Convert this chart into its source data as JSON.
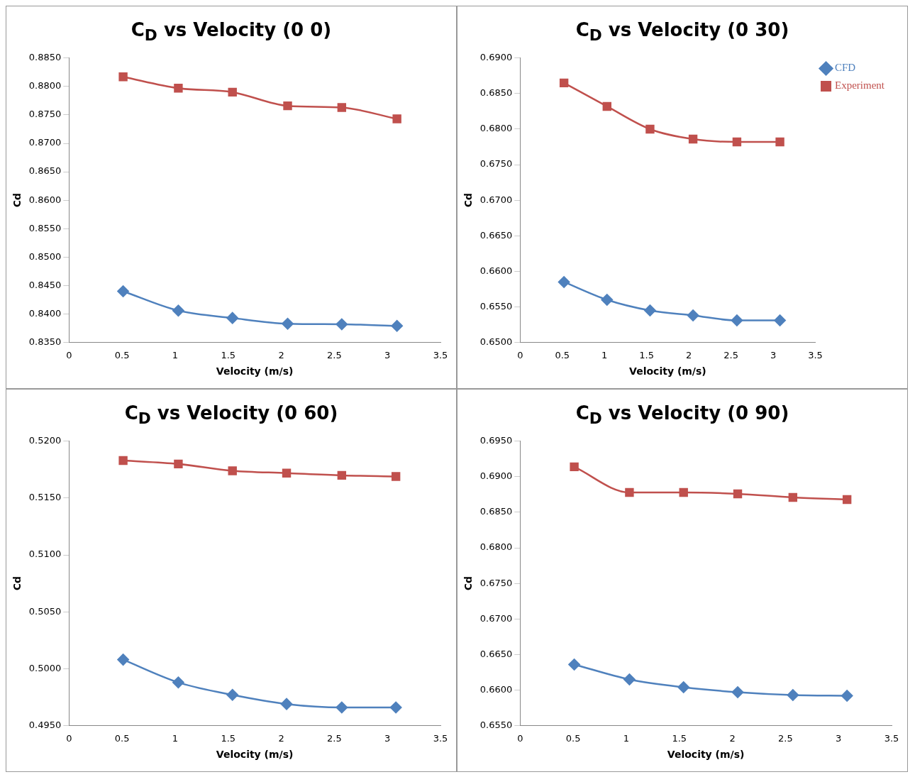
{
  "chart_data": [
    {
      "type": "line",
      "title": "C$_{D}$ vs Velocity (0 0)",
      "xlabel": "Velocity (m/s)",
      "ylabel": "Cd",
      "xlim": [
        0,
        3.5
      ],
      "xticks": [
        0,
        0.5,
        1,
        1.5,
        2,
        2.5,
        3,
        3.5
      ],
      "ylim": [
        0.835,
        0.885
      ],
      "yticks": [
        {
          "value": 0.835,
          "label": "0.8350"
        },
        {
          "value": 0.84,
          "label": "0.8400"
        },
        {
          "value": 0.845,
          "label": "0.8450"
        },
        {
          "value": 0.85,
          "label": "0.8500"
        },
        {
          "value": 0.855,
          "label": "0.8550"
        },
        {
          "value": 0.86,
          "label": "0.8600"
        },
        {
          "value": 0.865,
          "label": "0.8650"
        },
        {
          "value": 0.87,
          "label": "0.8700"
        },
        {
          "value": 0.875,
          "label": "0.8750"
        },
        {
          "value": 0.88,
          "label": "0.8800"
        },
        {
          "value": 0.885,
          "label": "0.8850"
        }
      ],
      "grid": false,
      "legend": false,
      "series": [
        {
          "color": "#4f81bd",
          "marker": "diamond",
          "x": [
            0.51,
            1.03,
            1.54,
            2.06,
            2.57,
            3.09
          ],
          "values": [
            0.844,
            0.8406,
            0.8393,
            0.8383,
            0.8382,
            0.8379
          ]
        },
        {
          "color": "#c0504d",
          "marker": "square",
          "x": [
            0.51,
            1.03,
            1.54,
            2.06,
            2.57,
            3.09
          ],
          "values": [
            0.8817,
            0.8797,
            0.879,
            0.8766,
            0.8763,
            0.8743
          ]
        }
      ]
    },
    {
      "type": "line",
      "title": "C$_{D}$ vs Velocity (0 30)",
      "xlabel": "Velocity (m/s)",
      "ylabel": "Cd",
      "xlim": [
        0,
        3.5
      ],
      "xticks": [
        0,
        0.5,
        1,
        1.5,
        2,
        2.5,
        3,
        3.5
      ],
      "ylim": [
        0.65,
        0.69
      ],
      "yticks": [
        {
          "value": 0.65,
          "label": "0.6500"
        },
        {
          "value": 0.655,
          "label": "0.6550"
        },
        {
          "value": 0.66,
          "label": "0.6600"
        },
        {
          "value": 0.665,
          "label": "0.6650"
        },
        {
          "value": 0.67,
          "label": "0.6700"
        },
        {
          "value": 0.675,
          "label": "0.6750"
        },
        {
          "value": 0.68,
          "label": "0.6800"
        },
        {
          "value": 0.685,
          "label": "0.6850"
        },
        {
          "value": 0.69,
          "label": "0.6900"
        }
      ],
      "grid": false,
      "legend": "top right",
      "series": [
        {
          "name": "CFD",
          "color": "#4f81bd",
          "marker": "diamond",
          "x": [
            0.52,
            1.03,
            1.54,
            2.05,
            2.57,
            3.08
          ],
          "values": [
            0.6585,
            0.656,
            0.6545,
            0.6538,
            0.6531,
            0.6531
          ]
        },
        {
          "name": "Experiment",
          "color": "#c0504d",
          "marker": "square",
          "x": [
            0.52,
            1.03,
            1.54,
            2.05,
            2.57,
            3.08
          ],
          "values": [
            0.6865,
            0.6832,
            0.68,
            0.6786,
            0.6782,
            0.6782
          ]
        }
      ]
    },
    {
      "type": "line",
      "title": "C$_{D}$ vs Velocity (0 60)",
      "xlabel": "Velocity (m/s)",
      "ylabel": "Cd",
      "xlim": [
        0,
        3.5
      ],
      "xticks": [
        0,
        0.5,
        1,
        1.5,
        2,
        2.5,
        3,
        3.5
      ],
      "ylim": [
        0.495,
        0.52
      ],
      "yticks": [
        {
          "value": 0.495,
          "label": "0.4950"
        },
        {
          "value": 0.5,
          "label": "0.5000"
        },
        {
          "value": 0.505,
          "label": "0.5050"
        },
        {
          "value": 0.51,
          "label": "0.5100"
        },
        {
          "value": 0.515,
          "label": "0.5150"
        },
        {
          "value": 0.52,
          "label": "0.5200"
        }
      ],
      "grid": false,
      "legend": false,
      "series": [
        {
          "color": "#4f81bd",
          "marker": "diamond",
          "x": [
            0.51,
            1.03,
            1.54,
            2.05,
            2.57,
            3.08
          ],
          "values": [
            0.5008,
            0.4988,
            0.4977,
            0.4969,
            0.4966,
            0.4966
          ]
        },
        {
          "color": "#c0504d",
          "marker": "square",
          "x": [
            0.51,
            1.03,
            1.54,
            2.05,
            2.57,
            3.08
          ],
          "values": [
            0.5183,
            0.518,
            0.5174,
            0.5172,
            0.517,
            0.5169
          ]
        }
      ]
    },
    {
      "type": "line",
      "title": "C$_{D}$ vs Velocity (0 90)",
      "xlabel": "Velocity (m/s)",
      "ylabel": "Cd",
      "xlim": [
        0,
        3.5
      ],
      "xticks": [
        0,
        0.5,
        1,
        1.5,
        2,
        2.5,
        3,
        3.5
      ],
      "ylim": [
        0.655,
        0.695
      ],
      "yticks": [
        {
          "value": 0.655,
          "label": "0.6550"
        },
        {
          "value": 0.66,
          "label": "0.6600"
        },
        {
          "value": 0.665,
          "label": "0.6650"
        },
        {
          "value": 0.67,
          "label": "0.6700"
        },
        {
          "value": 0.675,
          "label": "0.6750"
        },
        {
          "value": 0.68,
          "label": "0.6800"
        },
        {
          "value": 0.685,
          "label": "0.6850"
        },
        {
          "value": 0.69,
          "label": "0.6900"
        },
        {
          "value": 0.695,
          "label": "0.6950"
        }
      ],
      "grid": false,
      "legend": false,
      "series": [
        {
          "color": "#4f81bd",
          "marker": "diamond",
          "x": [
            0.51,
            1.03,
            1.54,
            2.05,
            2.57,
            3.08
          ],
          "values": [
            0.6636,
            0.6615,
            0.6604,
            0.6597,
            0.6593,
            0.6592
          ]
        },
        {
          "color": "#c0504d",
          "marker": "square",
          "x": [
            0.51,
            1.03,
            1.54,
            2.05,
            2.57,
            3.08
          ],
          "values": [
            0.6914,
            0.6878,
            0.6878,
            0.6876,
            0.6871,
            0.6868
          ]
        }
      ]
    }
  ]
}
